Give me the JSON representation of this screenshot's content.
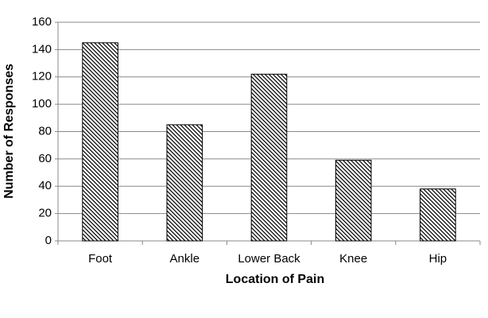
{
  "chart_data": {
    "type": "bar",
    "x_label": "Location of Pain",
    "y_label": "Number of Responses",
    "categories": [
      "Foot",
      "Ankle",
      "Lower Back",
      "Knee",
      "Hip"
    ],
    "values": [
      145,
      85,
      122,
      59,
      38
    ],
    "color": "#000000",
    "ylim": [
      0,
      160
    ],
    "yticks": [
      0,
      20,
      40,
      60,
      80,
      100,
      120,
      140,
      160
    ],
    "grid": true
  }
}
